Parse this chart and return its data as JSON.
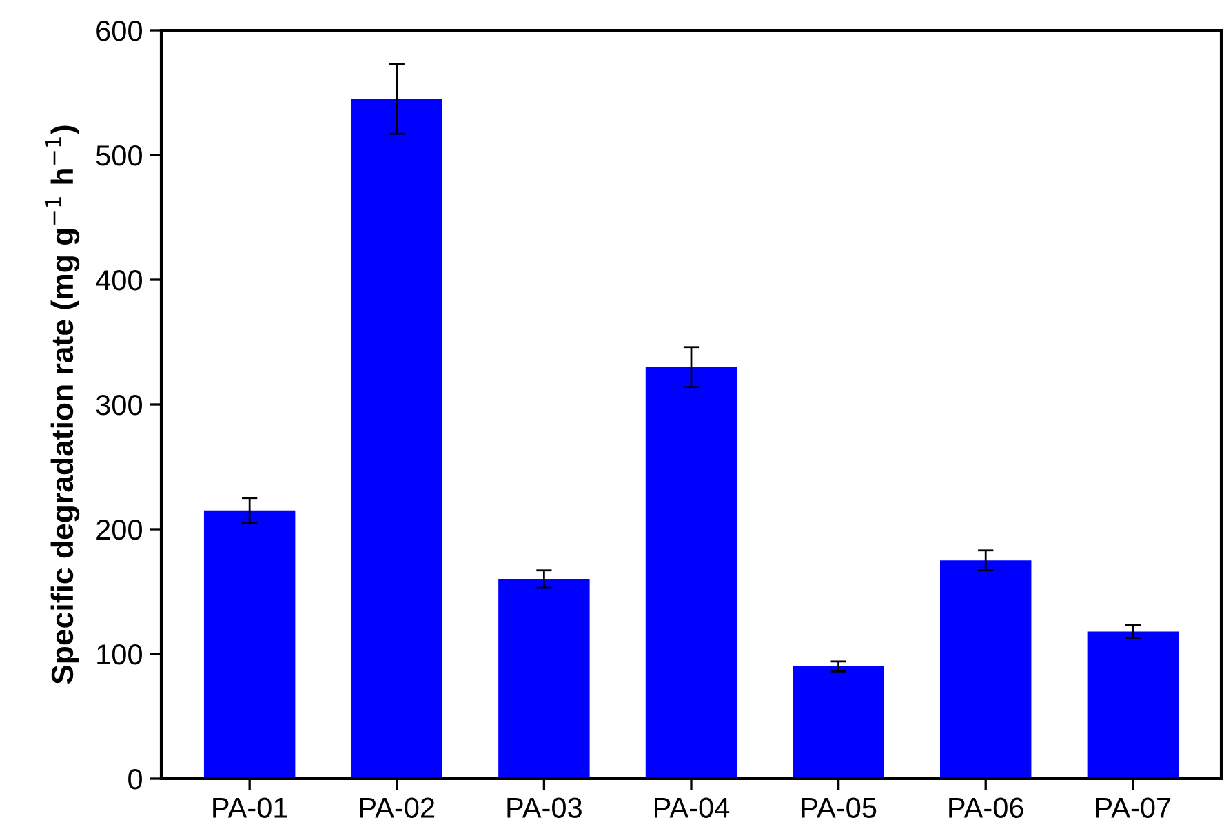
{
  "chart_data": {
    "type": "bar",
    "ylabel": "Specific degradation rate (mg g$^{−1}$ h$^{−1}$)",
    "categories": [
      "PA-01",
      "PA-02",
      "PA-03",
      "PA-04",
      "PA-05",
      "PA-06",
      "PA-07"
    ],
    "values": [
      215,
      545,
      160,
      330,
      90,
      175,
      118
    ],
    "errors": [
      10,
      28,
      7,
      16,
      4,
      8,
      5
    ],
    "color": "#0000ff",
    "ylim": [
      0,
      600
    ],
    "yticks": [
      0,
      100,
      200,
      300,
      400,
      500,
      600
    ],
    "grid": false
  }
}
